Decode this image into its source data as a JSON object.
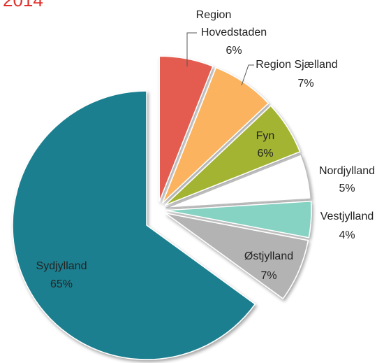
{
  "chart_data": {
    "type": "pie",
    "title": "2014",
    "categories": [
      "Region Hovedstaden",
      "Region Sjælland",
      "Fyn",
      "Nordjylland",
      "Vestjylland",
      "Østjylland",
      "Sydjylland"
    ],
    "values": [
      6,
      7,
      6,
      5,
      4,
      7,
      65
    ],
    "value_labels": [
      "6%",
      "7%",
      "6%",
      "5%",
      "4%",
      "7%",
      "65%"
    ],
    "colors": [
      "#e35b50",
      "#fbb35e",
      "#a3b433",
      "#ffffff",
      "#86d2c3",
      "#b3b3b3",
      "#1b7f8f"
    ]
  }
}
